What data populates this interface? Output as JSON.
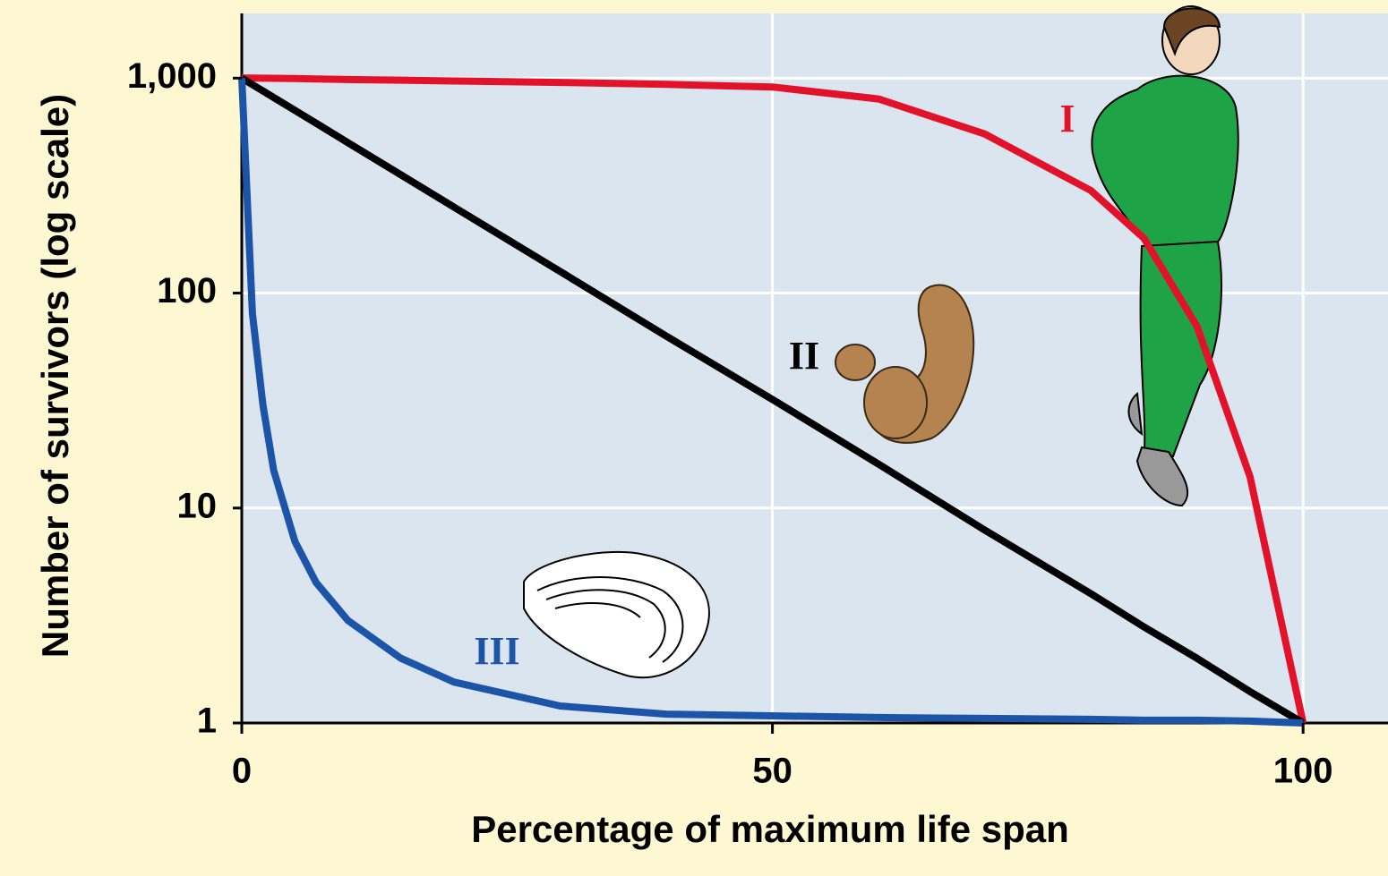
{
  "chart_data": {
    "type": "line",
    "y_label": "Number of survivors (log scale)",
    "x_label": "Percentage of maximum life span",
    "x": [
      0,
      1,
      2,
      3,
      5,
      7,
      10,
      15,
      20,
      30,
      40,
      50,
      60,
      70,
      80,
      85,
      90,
      95,
      100
    ],
    "series": [
      {
        "name": "I",
        "color": "#e3122b",
        "values": [
          1000,
          1000,
          999,
          998,
          995,
          992,
          985,
          978,
          970,
          955,
          935,
          910,
          800,
          550,
          300,
          180,
          70,
          14,
          1
        ]
      },
      {
        "name": "II",
        "color": "#000000",
        "values": [
          1000,
          933,
          871,
          813,
          708,
          617,
          501,
          355,
          251,
          126,
          63,
          32,
          16,
          7.9,
          4,
          2.8,
          2,
          1.4,
          1
        ]
      },
      {
        "name": "III",
        "color": "#1c55a8",
        "values": [
          1000,
          80,
          30,
          15,
          7,
          4.5,
          3,
          2,
          1.55,
          1.2,
          1.1,
          1.08,
          1.06,
          1.05,
          1.04,
          1.03,
          1.03,
          1.02,
          1
        ]
      }
    ],
    "xlim": [
      0,
      108
    ],
    "xticks": [
      0,
      50,
      100
    ],
    "ylim": [
      1,
      2000
    ],
    "yticks": [
      1,
      10,
      100,
      {
        "value": 1000,
        "label": "1,000"
      }
    ],
    "log_y": true,
    "grid": true
  }
}
